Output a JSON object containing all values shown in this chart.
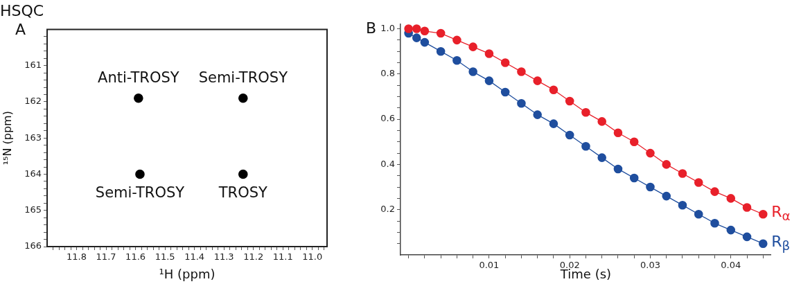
{
  "chart_data": [
    {
      "type": "scatter",
      "title": "HSQC",
      "xlabel": "¹H (ppm)",
      "ylabel": "¹⁵N (ppm)",
      "marker": "circle",
      "grid": false,
      "legend": false,
      "series": [
        {
          "color": "#000000",
          "x": [
            11.59,
            11.235,
            11.585,
            11.235
          ],
          "values": [
            161.9,
            161.9,
            164.0,
            164.0
          ]
        }
      ],
      "xlim": [
        11.9,
        10.95
      ],
      "ylim": [
        166,
        160
      ],
      "xticks": [
        {
          "value": 11.88,
          "label": null
        },
        {
          "value": 11.86,
          "label": null
        },
        {
          "value": 11.84,
          "label": null
        },
        {
          "value": 11.82,
          "label": null
        },
        11.8,
        {
          "value": 11.78,
          "label": null
        },
        {
          "value": 11.76,
          "label": null
        },
        {
          "value": 11.74,
          "label": null
        },
        {
          "value": 11.72,
          "label": null
        },
        11.7,
        {
          "value": 11.68,
          "label": null
        },
        {
          "value": 11.66,
          "label": null
        },
        {
          "value": 11.64,
          "label": null
        },
        {
          "value": 11.62,
          "label": null
        },
        11.6,
        {
          "value": 11.58,
          "label": null
        },
        {
          "value": 11.56,
          "label": null
        },
        {
          "value": 11.54,
          "label": null
        },
        {
          "value": 11.52,
          "label": null
        },
        11.5,
        {
          "value": 11.48,
          "label": null
        },
        {
          "value": 11.46,
          "label": null
        },
        {
          "value": 11.44,
          "label": null
        },
        {
          "value": 11.42,
          "label": null
        },
        11.4,
        {
          "value": 11.38,
          "label": null
        },
        {
          "value": 11.36,
          "label": null
        },
        {
          "value": 11.34,
          "label": null
        },
        {
          "value": 11.32,
          "label": null
        },
        11.3,
        {
          "value": 11.28,
          "label": null
        },
        {
          "value": 11.26,
          "label": null
        },
        {
          "value": 11.24,
          "label": null
        },
        {
          "value": 11.22,
          "label": null
        },
        11.2,
        {
          "value": 11.18,
          "label": null
        },
        {
          "value": 11.16,
          "label": null
        },
        {
          "value": 11.14,
          "label": null
        },
        {
          "value": 11.12,
          "label": null
        },
        11.1,
        {
          "value": 11.08,
          "label": null
        },
        {
          "value": 11.06,
          "label": null
        },
        {
          "value": 11.04,
          "label": null
        },
        {
          "value": 11.02,
          "label": null
        },
        {
          "value": 11,
          "label": "11.0"
        },
        {
          "value": 10.98,
          "label": null
        },
        {
          "value": 10.96,
          "label": null
        }
      ],
      "yticks": [
        {
          "value": 160.2,
          "label": null
        },
        {
          "value": 160.4,
          "label": null
        },
        {
          "value": 160.6,
          "label": null
        },
        {
          "value": 160.8,
          "label": null
        },
        161,
        {
          "value": 161.2,
          "label": null
        },
        {
          "value": 161.4,
          "label": null
        },
        {
          "value": 161.6,
          "label": null
        },
        {
          "value": 161.8,
          "label": null
        },
        162,
        {
          "value": 162.2,
          "label": null
        },
        {
          "value": 162.4,
          "label": null
        },
        {
          "value": 162.6,
          "label": null
        },
        {
          "value": 162.8,
          "label": null
        },
        163,
        {
          "value": 163.2,
          "label": null
        },
        {
          "value": 163.4,
          "label": null
        },
        {
          "value": 163.6,
          "label": null
        },
        {
          "value": 163.8,
          "label": null
        },
        164,
        {
          "value": 164.2,
          "label": null
        },
        {
          "value": 164.4,
          "label": null
        },
        {
          "value": 164.6,
          "label": null
        },
        {
          "value": 164.8,
          "label": null
        },
        165,
        {
          "value": 165.2,
          "label": null
        },
        {
          "value": 165.4,
          "label": null
        },
        {
          "value": 165.6,
          "label": null
        },
        {
          "value": 165.8,
          "label": null
        },
        166
      ],
      "annotations": [
        "A",
        {
          "text": "Anti-TROSY",
          "x": 11.59,
          "y": 161.9
        },
        {
          "text": "Semi-TROSY",
          "x": 11.235,
          "y": 161.9
        },
        {
          "text": "Semi-TROSY",
          "x": 11.585,
          "y": 164.0
        },
        {
          "text": "TROSY",
          "x": 11.235,
          "y": 164.0
        }
      ]
    },
    {
      "type": "line",
      "xlabel": "Time (s)",
      "marker": "circle",
      "grid": false,
      "legend": false,
      "x": [
        0,
        0.001,
        0.002,
        0.004,
        0.006,
        0.008,
        0.01,
        0.012,
        0.014,
        0.016,
        0.018,
        0.02,
        0.022,
        0.024,
        0.026,
        0.028,
        0.03,
        0.032,
        0.034,
        0.036,
        0.038,
        0.04,
        0.042,
        0.044
      ],
      "series": [
        {
          "name": "R$_{α}$",
          "color": "#e8202a",
          "values": [
            1.0,
            1.0,
            0.99,
            0.98,
            0.95,
            0.92,
            0.89,
            0.85,
            0.81,
            0.77,
            0.73,
            0.68,
            0.63,
            0.59,
            0.54,
            0.5,
            0.45,
            0.4,
            0.36,
            0.32,
            0.28,
            0.25,
            0.21,
            0.18
          ]
        },
        {
          "name": "R$_{β}$",
          "color": "#1f4e9e",
          "values": [
            0.98,
            0.96,
            0.94,
            0.9,
            0.86,
            0.81,
            0.77,
            0.72,
            0.67,
            0.62,
            0.58,
            0.53,
            0.48,
            0.43,
            0.38,
            0.34,
            0.3,
            0.26,
            0.22,
            0.18,
            0.14,
            0.11,
            0.08,
            0.05
          ]
        }
      ],
      "xlim": [
        -0.001,
        0.045
      ],
      "ylim": [
        0,
        1.02
      ],
      "xticks": [
        {
          "value": 0,
          "label": null
        },
        {
          "value": 0.002,
          "label": null
        },
        {
          "value": 0.004,
          "label": null
        },
        {
          "value": 0.006,
          "label": null
        },
        {
          "value": 0.008,
          "label": null
        },
        0.01,
        {
          "value": 0.012,
          "label": null
        },
        {
          "value": 0.014,
          "label": null
        },
        {
          "value": 0.016,
          "label": null
        },
        {
          "value": 0.018,
          "label": null
        },
        0.02,
        {
          "value": 0.022,
          "label": null
        },
        {
          "value": 0.024,
          "label": null
        },
        {
          "value": 0.026,
          "label": null
        },
        {
          "value": 0.028,
          "label": null
        },
        0.03,
        {
          "value": 0.032,
          "label": null
        },
        {
          "value": 0.034,
          "label": null
        },
        {
          "value": 0.036,
          "label": null
        },
        {
          "value": 0.038,
          "label": null
        },
        0.04,
        {
          "value": 0.042,
          "label": null
        },
        {
          "value": 0.044,
          "label": null
        }
      ],
      "yticks": [
        {
          "value": 0.05,
          "label": null
        },
        {
          "value": 0.1,
          "label": null
        },
        {
          "value": 0.15,
          "label": null
        },
        0.2,
        {
          "value": 0.25,
          "label": null
        },
        {
          "value": 0.3,
          "label": null
        },
        {
          "value": 0.35,
          "label": null
        },
        0.4,
        {
          "value": 0.45,
          "label": null
        },
        {
          "value": 0.5,
          "label": null
        },
        {
          "value": 0.55,
          "label": null
        },
        0.6,
        {
          "value": 0.65,
          "label": null
        },
        {
          "value": 0.7,
          "label": null
        },
        {
          "value": 0.75,
          "label": null
        },
        0.8,
        {
          "value": 0.85,
          "label": null
        },
        {
          "value": 0.9,
          "label": null
        },
        {
          "value": 0.95,
          "label": null
        },
        {
          "value": 1,
          "label": "1.0"
        }
      ],
      "annotations": [
        "B"
      ]
    }
  ]
}
